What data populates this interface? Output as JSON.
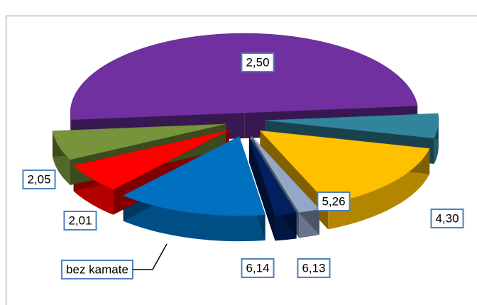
{
  "chart_data": {
    "type": "pie",
    "categories": [
      "2,50",
      "4,30",
      "5,26",
      "6,13",
      "6,14",
      "bez kamate",
      "2,01",
      "2,05"
    ],
    "values": [
      50,
      5,
      15,
      2,
      2,
      14,
      6,
      6
    ],
    "colors": [
      "#7030a0",
      "#31849b",
      "#ffc000",
      "#95a7c7",
      "#002060",
      "#0070c0",
      "#ff0000",
      "#77933c"
    ]
  }
}
